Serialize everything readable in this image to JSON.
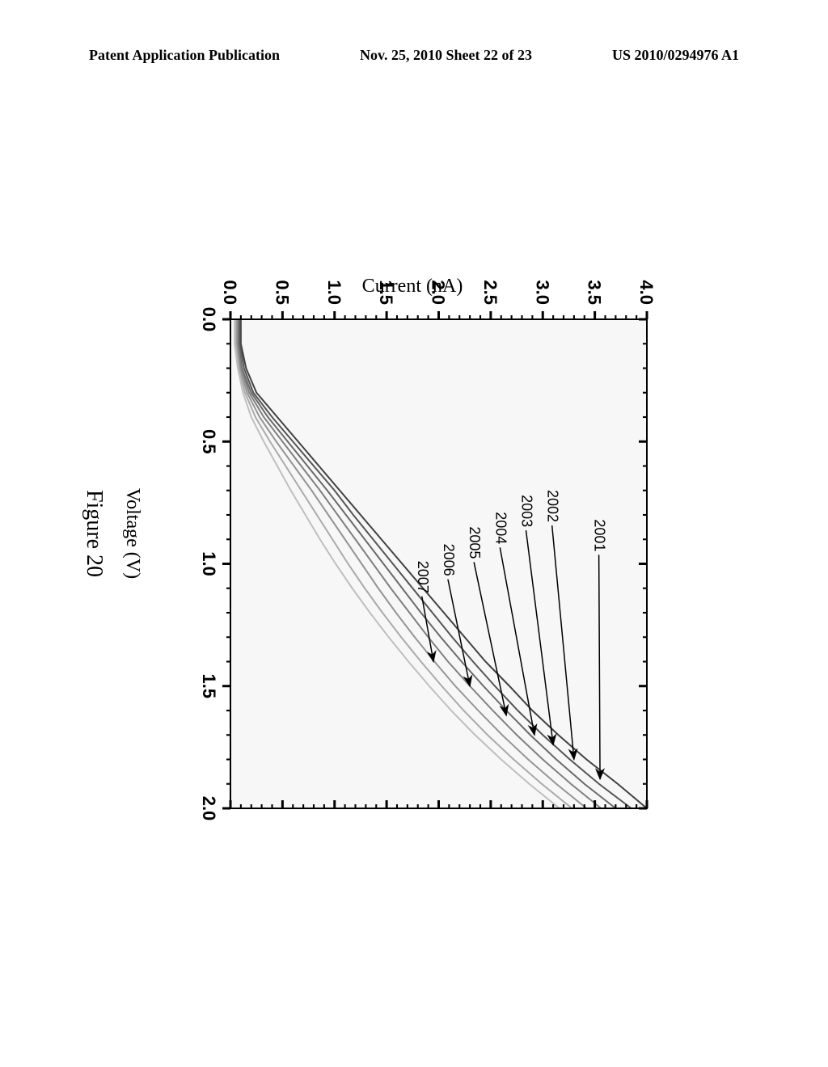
{
  "header": {
    "left": "Patent Application Publication",
    "center": "Nov. 25, 2010  Sheet 22 of 23",
    "right": "US 2010/0294976 A1"
  },
  "chart": {
    "type": "line",
    "xlabel": "Voltage (V)",
    "ylabel": "Current (nA)",
    "caption": "Figure 20",
    "background_color": "#ffffff",
    "plot_bg_color": "#f7f7f7",
    "border_color": "#000000",
    "border_width": 2,
    "tick_length_major": 10,
    "tick_length_minor": 5,
    "tick_width": 3,
    "tick_color": "#000000",
    "xlim": [
      0.0,
      2.0
    ],
    "ylim": [
      0.0,
      4.0
    ],
    "xtick_step": 0.5,
    "ytick_step": 0.5,
    "xticks": [
      "0.0",
      "0.5",
      "1.0",
      "1.5",
      "2.0"
    ],
    "yticks": [
      "0.0",
      "0.5",
      "1.0",
      "1.5",
      "2.0",
      "2.5",
      "3.0",
      "3.5",
      "4.0"
    ],
    "ticklabel_fontsize": 22,
    "ticklabel_fontweight": "bold",
    "axislabel_fontsize": 24,
    "caption_fontsize": 28,
    "line_width": 2,
    "annotation_fontsize": 18,
    "annotation_color": "#000000",
    "arrow_width": 1.5,
    "series": [
      {
        "label": "2001",
        "color": "#404040",
        "data": [
          [
            0.0,
            0.1
          ],
          [
            0.1,
            0.1
          ],
          [
            0.2,
            0.15
          ],
          [
            0.3,
            0.25
          ],
          [
            0.4,
            0.45
          ],
          [
            0.5,
            0.65
          ],
          [
            0.6,
            0.85
          ],
          [
            0.7,
            1.05
          ],
          [
            0.8,
            1.25
          ],
          [
            0.9,
            1.45
          ],
          [
            1.0,
            1.65
          ],
          [
            1.1,
            1.85
          ],
          [
            1.2,
            2.05
          ],
          [
            1.3,
            2.25
          ],
          [
            1.4,
            2.45
          ],
          [
            1.5,
            2.68
          ],
          [
            1.6,
            2.9
          ],
          [
            1.7,
            3.15
          ],
          [
            1.8,
            3.42
          ],
          [
            1.9,
            3.72
          ],
          [
            2.0,
            4.0
          ]
        ],
        "label_pos": [
          0.95,
          3.5
        ],
        "arrow_tip": [
          1.88,
          3.55
        ]
      },
      {
        "label": "2002",
        "color": "#555555",
        "data": [
          [
            0.0,
            0.09
          ],
          [
            0.1,
            0.09
          ],
          [
            0.2,
            0.13
          ],
          [
            0.3,
            0.22
          ],
          [
            0.4,
            0.4
          ],
          [
            0.5,
            0.6
          ],
          [
            0.6,
            0.8
          ],
          [
            0.7,
            1.0
          ],
          [
            0.8,
            1.18
          ],
          [
            0.9,
            1.37
          ],
          [
            1.0,
            1.56
          ],
          [
            1.1,
            1.75
          ],
          [
            1.2,
            1.94
          ],
          [
            1.3,
            2.13
          ],
          [
            1.4,
            2.33
          ],
          [
            1.5,
            2.54
          ],
          [
            1.6,
            2.76
          ],
          [
            1.7,
            3.0
          ],
          [
            1.8,
            3.26
          ],
          [
            1.9,
            3.54
          ],
          [
            2.0,
            3.85
          ]
        ],
        "label_pos": [
          0.83,
          3.05
        ],
        "arrow_tip": [
          1.8,
          3.3
        ]
      },
      {
        "label": "2003",
        "color": "#6a6a6a",
        "data": [
          [
            0.0,
            0.08
          ],
          [
            0.1,
            0.08
          ],
          [
            0.2,
            0.11
          ],
          [
            0.3,
            0.2
          ],
          [
            0.4,
            0.36
          ],
          [
            0.5,
            0.55
          ],
          [
            0.6,
            0.74
          ],
          [
            0.7,
            0.93
          ],
          [
            0.8,
            1.11
          ],
          [
            0.9,
            1.29
          ],
          [
            1.0,
            1.47
          ],
          [
            1.1,
            1.65
          ],
          [
            1.2,
            1.83
          ],
          [
            1.3,
            2.02
          ],
          [
            1.4,
            2.22
          ],
          [
            1.5,
            2.43
          ],
          [
            1.6,
            2.65
          ],
          [
            1.7,
            2.88
          ],
          [
            1.8,
            3.13
          ],
          [
            1.9,
            3.4
          ],
          [
            2.0,
            3.7
          ]
        ],
        "label_pos": [
          0.85,
          2.8
        ],
        "arrow_tip": [
          1.74,
          3.1
        ]
      },
      {
        "label": "2004",
        "color": "#808080",
        "data": [
          [
            0.0,
            0.07
          ],
          [
            0.1,
            0.07
          ],
          [
            0.2,
            0.1
          ],
          [
            0.3,
            0.18
          ],
          [
            0.4,
            0.32
          ],
          [
            0.5,
            0.5
          ],
          [
            0.6,
            0.68
          ],
          [
            0.7,
            0.86
          ],
          [
            0.8,
            1.03
          ],
          [
            0.9,
            1.2
          ],
          [
            1.0,
            1.37
          ],
          [
            1.1,
            1.54
          ],
          [
            1.2,
            1.72
          ],
          [
            1.3,
            1.9
          ],
          [
            1.4,
            2.09
          ],
          [
            1.5,
            2.3
          ],
          [
            1.6,
            2.52
          ],
          [
            1.7,
            2.75
          ],
          [
            1.8,
            3.0
          ],
          [
            1.9,
            3.27
          ],
          [
            2.0,
            3.56
          ]
        ],
        "label_pos": [
          0.92,
          2.55
        ],
        "arrow_tip": [
          1.7,
          2.92
        ]
      },
      {
        "label": "2005",
        "color": "#959595",
        "data": [
          [
            0.0,
            0.06
          ],
          [
            0.1,
            0.06
          ],
          [
            0.2,
            0.09
          ],
          [
            0.3,
            0.16
          ],
          [
            0.4,
            0.28
          ],
          [
            0.5,
            0.44
          ],
          [
            0.6,
            0.61
          ],
          [
            0.7,
            0.78
          ],
          [
            0.8,
            0.94
          ],
          [
            0.9,
            1.1
          ],
          [
            1.0,
            1.26
          ],
          [
            1.1,
            1.42
          ],
          [
            1.2,
            1.59
          ],
          [
            1.3,
            1.77
          ],
          [
            1.4,
            1.96
          ],
          [
            1.5,
            2.16
          ],
          [
            1.6,
            2.38
          ],
          [
            1.7,
            2.61
          ],
          [
            1.8,
            2.86
          ],
          [
            1.9,
            3.13
          ],
          [
            2.0,
            3.42
          ]
        ],
        "label_pos": [
          0.98,
          2.3
        ],
        "arrow_tip": [
          1.62,
          2.65
        ]
      },
      {
        "label": "2006",
        "color": "#aaaaaa",
        "data": [
          [
            0.0,
            0.05
          ],
          [
            0.1,
            0.05
          ],
          [
            0.2,
            0.08
          ],
          [
            0.3,
            0.14
          ],
          [
            0.4,
            0.24
          ],
          [
            0.5,
            0.38
          ],
          [
            0.6,
            0.53
          ],
          [
            0.7,
            0.68
          ],
          [
            0.8,
            0.83
          ],
          [
            0.9,
            0.98
          ],
          [
            1.0,
            1.13
          ],
          [
            1.1,
            1.29
          ],
          [
            1.2,
            1.46
          ],
          [
            1.3,
            1.64
          ],
          [
            1.4,
            1.83
          ],
          [
            1.5,
            2.03
          ],
          [
            1.6,
            2.24
          ],
          [
            1.7,
            2.47
          ],
          [
            1.8,
            2.72
          ],
          [
            1.9,
            2.99
          ],
          [
            2.0,
            3.28
          ]
        ],
        "label_pos": [
          1.05,
          2.05
        ],
        "arrow_tip": [
          1.5,
          2.3
        ]
      },
      {
        "label": "2007",
        "color": "#bfbfbf",
        "data": [
          [
            0.0,
            0.04
          ],
          [
            0.1,
            0.04
          ],
          [
            0.2,
            0.07
          ],
          [
            0.3,
            0.12
          ],
          [
            0.4,
            0.2
          ],
          [
            0.5,
            0.32
          ],
          [
            0.6,
            0.45
          ],
          [
            0.7,
            0.58
          ],
          [
            0.8,
            0.72
          ],
          [
            0.9,
            0.86
          ],
          [
            1.0,
            1.01
          ],
          [
            1.1,
            1.17
          ],
          [
            1.2,
            1.34
          ],
          [
            1.3,
            1.52
          ],
          [
            1.4,
            1.71
          ],
          [
            1.5,
            1.91
          ],
          [
            1.6,
            2.12
          ],
          [
            1.7,
            2.35
          ],
          [
            1.8,
            2.6
          ],
          [
            1.9,
            2.87
          ],
          [
            2.0,
            3.16
          ]
        ],
        "label_pos": [
          1.12,
          1.8
        ],
        "arrow_tip": [
          1.4,
          1.95
        ]
      }
    ]
  }
}
